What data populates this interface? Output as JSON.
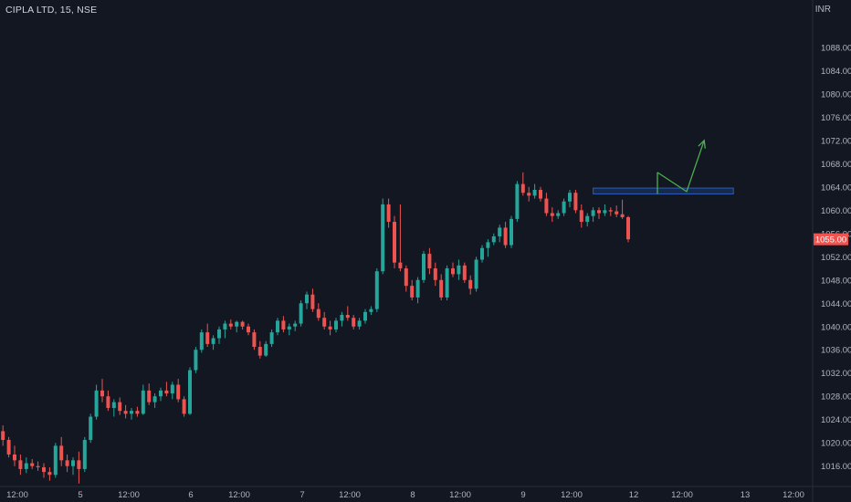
{
  "header": {
    "symbol_title": "CIPLA LTD, 15, NSE",
    "currency": "INR"
  },
  "colors": {
    "background": "#131722",
    "up": "#26a69a",
    "down": "#ef5350",
    "axis_text": "#b2b5be",
    "price_tag_bg": "#ef5350",
    "zone_fill": "#1e3a6e",
    "zone_stroke": "#2e5bb8",
    "arrow": "#4caf50"
  },
  "chart_data": {
    "type": "candlestick",
    "y_ticks": [
      "1016.00",
      "1020.00",
      "1024.00",
      "1028.00",
      "1032.00",
      "1036.00",
      "1040.00",
      "1044.00",
      "1048.00",
      "1052.00",
      "1056.00",
      "1060.00",
      "1064.00",
      "1068.00",
      "1072.00",
      "1076.00",
      "1080.00",
      "1084.00",
      "1088.00"
    ],
    "ylim": [
      1012.5,
      1093
    ],
    "x_ticks": [
      "12:00",
      "5",
      "12:00",
      "6",
      "12:00",
      "7",
      "12:00",
      "8",
      "12:00",
      "9",
      "12:00",
      "12",
      "12:00",
      "13",
      "12:00"
    ],
    "last_price": "1055.00",
    "ohlc": [
      [
        1022.0,
        1023.0,
        1019.5,
        1020.5
      ],
      [
        1020.5,
        1021.0,
        1017.5,
        1018.0
      ],
      [
        1018.0,
        1019.5,
        1016.0,
        1017.0
      ],
      [
        1017.0,
        1018.0,
        1014.5,
        1015.5
      ],
      [
        1015.5,
        1017.5,
        1014.8,
        1016.5
      ],
      [
        1016.5,
        1017.2,
        1015.5,
        1016.0
      ],
      [
        1016.0,
        1016.8,
        1015.2,
        1015.8
      ],
      [
        1015.8,
        1016.5,
        1014.0,
        1015.0
      ],
      [
        1015.0,
        1015.8,
        1013.5,
        1014.5
      ],
      [
        1014.5,
        1020.0,
        1014.0,
        1019.5
      ],
      [
        1019.5,
        1021.0,
        1016.0,
        1017.0
      ],
      [
        1017.0,
        1018.0,
        1015.0,
        1016.0
      ],
      [
        1016.0,
        1017.5,
        1014.5,
        1017.0
      ],
      [
        1017.0,
        1018.5,
        1013.0,
        1015.5
      ],
      [
        1015.5,
        1021.0,
        1015.0,
        1020.5
      ],
      [
        1020.5,
        1025.0,
        1020.0,
        1024.5
      ],
      [
        1024.5,
        1030.0,
        1024.0,
        1029.0
      ],
      [
        1029.0,
        1031.0,
        1027.0,
        1028.0
      ],
      [
        1028.0,
        1029.0,
        1025.5,
        1026.0
      ],
      [
        1026.0,
        1027.5,
        1024.5,
        1027.0
      ],
      [
        1027.0,
        1027.8,
        1024.8,
        1025.5
      ],
      [
        1025.5,
        1026.5,
        1024.2,
        1025.0
      ],
      [
        1025.0,
        1026.0,
        1024.0,
        1025.5
      ],
      [
        1025.5,
        1026.2,
        1024.5,
        1025.0
      ],
      [
        1025.0,
        1030.0,
        1024.8,
        1029.0
      ],
      [
        1029.0,
        1030.2,
        1026.5,
        1027.0
      ],
      [
        1027.0,
        1028.5,
        1026.0,
        1028.0
      ],
      [
        1028.0,
        1029.5,
        1027.2,
        1029.0
      ],
      [
        1029.0,
        1030.5,
        1028.0,
        1028.5
      ],
      [
        1028.5,
        1030.5,
        1027.5,
        1030.0
      ],
      [
        1030.0,
        1031.0,
        1027.0,
        1027.5
      ],
      [
        1027.5,
        1028.0,
        1024.5,
        1025.0
      ],
      [
        1025.0,
        1033.0,
        1024.8,
        1032.5
      ],
      [
        1032.5,
        1036.5,
        1032.0,
        1036.0
      ],
      [
        1036.0,
        1039.5,
        1035.5,
        1039.0
      ],
      [
        1039.0,
        1040.5,
        1036.5,
        1037.0
      ],
      [
        1037.0,
        1038.5,
        1036.0,
        1038.0
      ],
      [
        1038.0,
        1040.0,
        1037.0,
        1039.5
      ],
      [
        1039.5,
        1041.0,
        1038.0,
        1040.5
      ],
      [
        1040.5,
        1041.2,
        1039.5,
        1040.0
      ],
      [
        1040.0,
        1041.0,
        1039.0,
        1040.8
      ],
      [
        1040.8,
        1041.0,
        1039.5,
        1040.0
      ],
      [
        1040.0,
        1040.5,
        1038.5,
        1039.0
      ],
      [
        1039.0,
        1039.5,
        1036.0,
        1036.5
      ],
      [
        1036.5,
        1037.5,
        1034.5,
        1035.0
      ],
      [
        1035.0,
        1037.5,
        1034.8,
        1037.0
      ],
      [
        1037.0,
        1039.5,
        1036.5,
        1039.0
      ],
      [
        1039.0,
        1041.5,
        1038.5,
        1041.0
      ],
      [
        1041.0,
        1041.8,
        1039.0,
        1039.5
      ],
      [
        1039.5,
        1040.5,
        1038.5,
        1040.0
      ],
      [
        1040.0,
        1041.0,
        1039.2,
        1040.5
      ],
      [
        1040.5,
        1044.5,
        1040.0,
        1044.0
      ],
      [
        1044.0,
        1046.0,
        1043.0,
        1045.5
      ],
      [
        1045.5,
        1046.5,
        1042.5,
        1043.0
      ],
      [
        1043.0,
        1044.0,
        1041.0,
        1041.5
      ],
      [
        1041.5,
        1042.5,
        1039.5,
        1040.0
      ],
      [
        1040.0,
        1041.0,
        1038.5,
        1039.5
      ],
      [
        1039.5,
        1041.5,
        1039.0,
        1041.0
      ],
      [
        1041.0,
        1042.5,
        1040.0,
        1042.0
      ],
      [
        1042.0,
        1043.5,
        1041.0,
        1041.5
      ],
      [
        1041.5,
        1042.0,
        1039.5,
        1040.0
      ],
      [
        1040.0,
        1041.5,
        1039.5,
        1041.0
      ],
      [
        1041.0,
        1043.0,
        1040.5,
        1042.5
      ],
      [
        1042.5,
        1043.5,
        1042.0,
        1043.0
      ],
      [
        1043.0,
        1050.0,
        1042.5,
        1049.5
      ],
      [
        1049.5,
        1062.0,
        1049.0,
        1061.0
      ],
      [
        1061.0,
        1062.0,
        1057.0,
        1058.0
      ],
      [
        1058.0,
        1059.0,
        1050.0,
        1051.0
      ],
      [
        1051.0,
        1061.0,
        1049.5,
        1050.0
      ],
      [
        1050.0,
        1050.5,
        1046.0,
        1047.0
      ],
      [
        1047.0,
        1048.0,
        1044.5,
        1045.0
      ],
      [
        1045.0,
        1048.5,
        1044.0,
        1048.0
      ],
      [
        1048.0,
        1053.0,
        1047.5,
        1052.5
      ],
      [
        1052.5,
        1053.5,
        1049.0,
        1050.0
      ],
      [
        1050.0,
        1051.0,
        1047.0,
        1048.0
      ],
      [
        1048.0,
        1049.0,
        1044.5,
        1045.0
      ],
      [
        1045.0,
        1050.5,
        1044.5,
        1050.0
      ],
      [
        1050.0,
        1051.0,
        1048.5,
        1049.0
      ],
      [
        1049.0,
        1051.5,
        1048.0,
        1050.5
      ],
      [
        1050.5,
        1051.0,
        1047.5,
        1048.0
      ],
      [
        1048.0,
        1048.8,
        1045.5,
        1046.5
      ],
      [
        1046.5,
        1052.0,
        1046.0,
        1051.5
      ],
      [
        1051.5,
        1054.0,
        1051.0,
        1053.5
      ],
      [
        1053.5,
        1055.0,
        1052.0,
        1054.5
      ],
      [
        1054.5,
        1056.0,
        1054.0,
        1055.5
      ],
      [
        1055.5,
        1057.5,
        1054.5,
        1057.0
      ],
      [
        1057.0,
        1058.0,
        1053.5,
        1054.0
      ],
      [
        1054.0,
        1059.0,
        1053.5,
        1058.5
      ],
      [
        1058.5,
        1065.0,
        1058.0,
        1064.5
      ],
      [
        1064.5,
        1066.5,
        1062.5,
        1063.0
      ],
      [
        1063.0,
        1064.0,
        1061.5,
        1062.5
      ],
      [
        1062.5,
        1064.5,
        1062.0,
        1063.5
      ],
      [
        1063.5,
        1064.0,
        1061.5,
        1062.0
      ],
      [
        1062.0,
        1063.0,
        1059.0,
        1059.5
      ],
      [
        1059.5,
        1060.5,
        1058.0,
        1059.0
      ],
      [
        1059.0,
        1060.0,
        1058.5,
        1059.5
      ],
      [
        1059.5,
        1062.0,
        1059.0,
        1061.5
      ],
      [
        1061.5,
        1063.5,
        1060.5,
        1063.0
      ],
      [
        1063.0,
        1063.5,
        1059.5,
        1060.0
      ],
      [
        1060.0,
        1061.0,
        1057.0,
        1058.0
      ],
      [
        1058.0,
        1059.5,
        1057.2,
        1059.0
      ],
      [
        1059.0,
        1060.5,
        1058.0,
        1060.0
      ],
      [
        1060.0,
        1060.5,
        1058.5,
        1059.5
      ],
      [
        1059.5,
        1061.0,
        1059.0,
        1060.0
      ],
      [
        1060.0,
        1060.5,
        1059.0,
        1059.8
      ],
      [
        1059.8,
        1060.8,
        1058.8,
        1059.3
      ],
      [
        1059.3,
        1061.8,
        1058.5,
        1058.8
      ],
      [
        1058.8,
        1059.0,
        1054.5,
        1055.0
      ]
    ],
    "annotations": [
      {
        "type": "horizontal-zone",
        "y1": 1062.8,
        "y2": 1063.8,
        "x_bar_start": 101,
        "x_bar_end": 125
      },
      {
        "type": "path-arrow",
        "points": [
          [
            112,
            1066.5
          ],
          [
            117,
            1063.2
          ],
          [
            120,
            1072.0
          ]
        ]
      }
    ]
  }
}
